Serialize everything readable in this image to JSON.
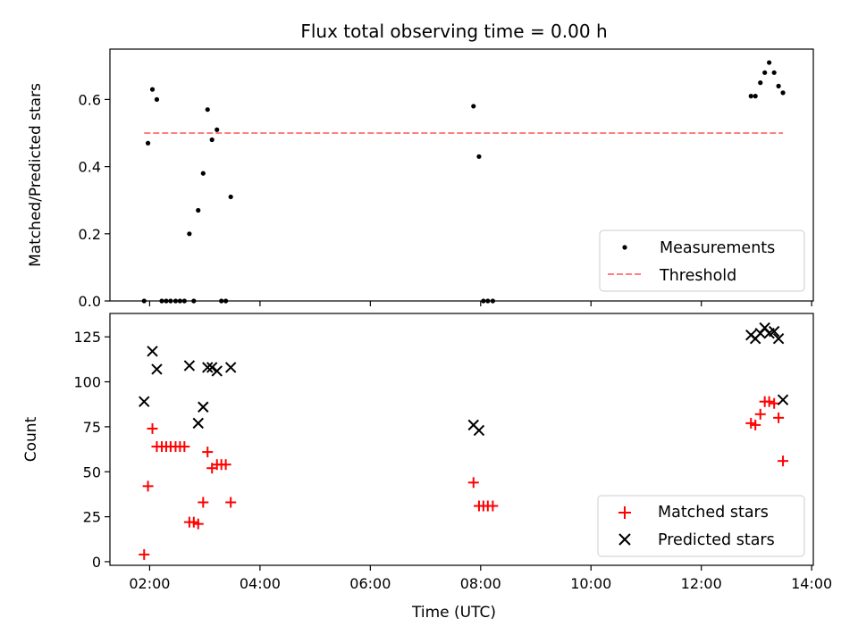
{
  "figure": {
    "title": "Flux total observing time = 0.00 h"
  },
  "chart_data": [
    {
      "type": "scatter",
      "title": "Flux total observing time = 0.00 h",
      "xlabel": "",
      "ylabel": "Matched/Predicted stars",
      "xlim_hours": [
        1.28,
        14.03
      ],
      "ylim": [
        0,
        0.75
      ],
      "yticks": [
        0.0,
        0.2,
        0.4,
        0.6
      ],
      "ytick_labels": [
        "0.0",
        "0.2",
        "0.4",
        "0.6"
      ],
      "xticks_hours": [
        2,
        4,
        6,
        8,
        10,
        12,
        14
      ],
      "grid": false,
      "legend_position": "lower-right",
      "series": [
        {
          "name": "Measurements",
          "marker": "dot",
          "color": "#000000",
          "points": [
            [
              1.9,
              0.0
            ],
            [
              1.97,
              0.47
            ],
            [
              2.05,
              0.63
            ],
            [
              2.13,
              0.6
            ],
            [
              2.22,
              0.0
            ],
            [
              2.3,
              0.0
            ],
            [
              2.38,
              0.0
            ],
            [
              2.47,
              0.0
            ],
            [
              2.55,
              0.0
            ],
            [
              2.63,
              0.0
            ],
            [
              2.72,
              0.2
            ],
            [
              2.8,
              0.0
            ],
            [
              2.88,
              0.27
            ],
            [
              2.97,
              0.38
            ],
            [
              3.05,
              0.57
            ],
            [
              3.13,
              0.48
            ],
            [
              3.22,
              0.51
            ],
            [
              3.3,
              0.0
            ],
            [
              3.38,
              0.0
            ],
            [
              3.47,
              0.31
            ],
            [
              7.87,
              0.58
            ],
            [
              7.97,
              0.43
            ],
            [
              8.05,
              0.0
            ],
            [
              8.13,
              0.0
            ],
            [
              8.22,
              0.0
            ],
            [
              12.9,
              0.61
            ],
            [
              12.98,
              0.61
            ],
            [
              13.07,
              0.65
            ],
            [
              13.15,
              0.68
            ],
            [
              13.23,
              0.71
            ],
            [
              13.32,
              0.68
            ],
            [
              13.4,
              0.64
            ],
            [
              13.48,
              0.62
            ]
          ]
        },
        {
          "name": "Threshold",
          "marker": "dashed-line",
          "color": "#ff7f7f",
          "points": [
            [
              1.9,
              0.5
            ],
            [
              13.48,
              0.5
            ]
          ]
        }
      ]
    },
    {
      "type": "scatter",
      "xlabel": "Time (UTC)",
      "ylabel": "Count",
      "xlim_hours": [
        1.28,
        14.03
      ],
      "ylim": [
        -2,
        138
      ],
      "yticks": [
        0,
        25,
        50,
        75,
        100,
        125
      ],
      "ytick_labels": [
        "0",
        "25",
        "50",
        "75",
        "100",
        "125"
      ],
      "xticks_hours": [
        2,
        4,
        6,
        8,
        10,
        12,
        14
      ],
      "xtick_labels": [
        "02:00",
        "04:00",
        "06:00",
        "08:00",
        "10:00",
        "12:00",
        "14:00"
      ],
      "grid": false,
      "legend_position": "lower-right",
      "series": [
        {
          "name": "Matched stars",
          "marker": "plus",
          "color": "#ff0000",
          "points": [
            [
              1.9,
              4
            ],
            [
              1.97,
              42
            ],
            [
              2.05,
              74
            ],
            [
              2.13,
              64
            ],
            [
              2.22,
              64
            ],
            [
              2.3,
              64
            ],
            [
              2.38,
              64
            ],
            [
              2.47,
              64
            ],
            [
              2.55,
              64
            ],
            [
              2.63,
              64
            ],
            [
              2.72,
              22
            ],
            [
              2.8,
              22
            ],
            [
              2.88,
              21
            ],
            [
              2.97,
              33
            ],
            [
              3.05,
              61
            ],
            [
              3.13,
              52
            ],
            [
              3.22,
              54
            ],
            [
              3.3,
              54
            ],
            [
              3.38,
              54
            ],
            [
              3.47,
              33
            ],
            [
              7.87,
              44
            ],
            [
              7.97,
              31
            ],
            [
              8.05,
              31
            ],
            [
              8.13,
              31
            ],
            [
              8.22,
              31
            ],
            [
              12.9,
              77
            ],
            [
              12.98,
              76
            ],
            [
              13.07,
              82
            ],
            [
              13.15,
              89
            ],
            [
              13.23,
              89
            ],
            [
              13.32,
              88
            ],
            [
              13.4,
              80
            ],
            [
              13.48,
              56
            ]
          ]
        },
        {
          "name": "Predicted stars",
          "marker": "x",
          "color": "#000000",
          "points": [
            [
              1.9,
              89
            ],
            [
              2.05,
              117
            ],
            [
              2.13,
              107
            ],
            [
              2.72,
              109
            ],
            [
              2.88,
              77
            ],
            [
              2.97,
              86
            ],
            [
              3.05,
              108
            ],
            [
              3.13,
              108
            ],
            [
              3.22,
              106
            ],
            [
              3.47,
              108
            ],
            [
              7.87,
              76
            ],
            [
              7.97,
              73
            ],
            [
              12.9,
              126
            ],
            [
              12.98,
              124
            ],
            [
              13.07,
              127
            ],
            [
              13.15,
              130
            ],
            [
              13.23,
              127
            ],
            [
              13.32,
              128
            ],
            [
              13.4,
              124
            ],
            [
              13.48,
              90
            ]
          ]
        }
      ]
    }
  ]
}
